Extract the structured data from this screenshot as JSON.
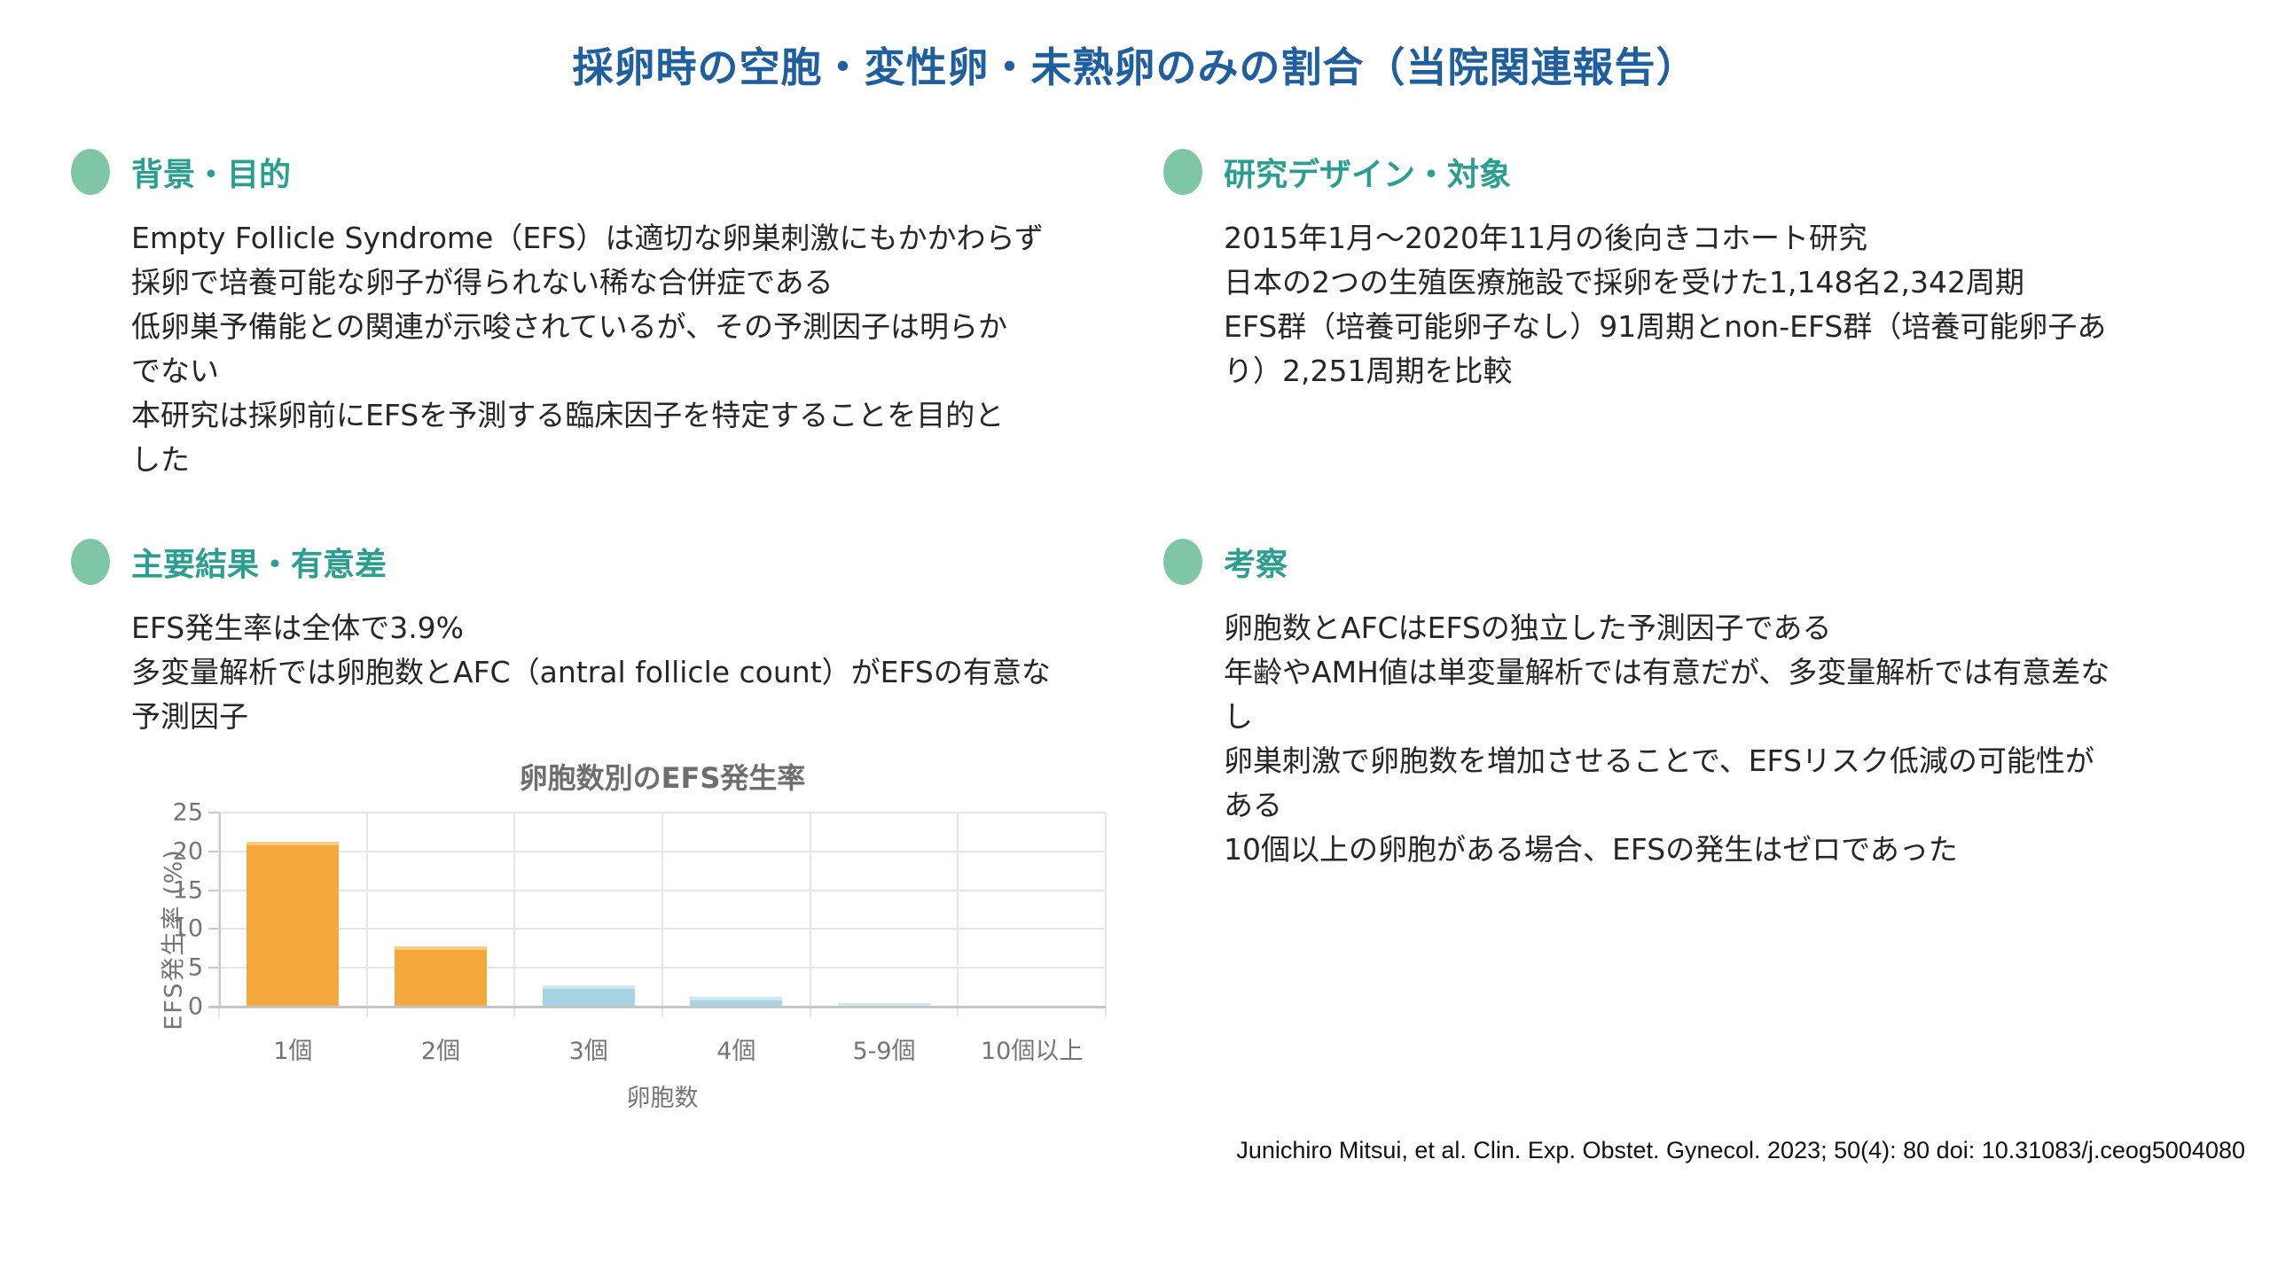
{
  "title": "採卵時の空胞・変性卵・未熟卵のみの割合（当院関連報告）",
  "sections": [
    {
      "heading": "背景・目的",
      "lines": [
        "Empty Follicle Syndrome（EFS）は適切な卵巣刺激にもかかわらず",
        "採卵で培養可能な卵子が得られない稀な合併症である",
        "低卵巣予備能との関連が示唆されているが、その予測因子は明らか",
        "でない",
        "本研究は採卵前にEFSを予測する臨床因子を特定することを目的と",
        "した"
      ]
    },
    {
      "heading": "研究デザイン・対象",
      "lines": [
        "2015年1月〜2020年11月の後向きコホート研究",
        "日本の2つの生殖医療施設で採卵を受けた1,148名2,342周期",
        "EFS群（培養可能卵子なし）91周期とnon-EFS群（培養可能卵子あ",
        "り）2,251周期を比較"
      ]
    },
    {
      "heading": "主要結果・有意差",
      "lines": [
        "EFS発生率は全体で3.9%",
        "多変量解析では卵胞数とAFC（antral follicle count）がEFSの有意な",
        "予測因子"
      ]
    },
    {
      "heading": "考察",
      "lines": [
        "卵胞数とAFCはEFSの独立した予測因子である",
        "年齢やAMH値は単変量解析では有意だが、多変量解析では有意差な",
        "し",
        "卵巣刺激で卵胞数を増加させることで、EFSリスク低減の可能性が",
        "ある",
        "10個以上の卵胞がある場合、EFSの発生はゼロであった"
      ]
    }
  ],
  "citation": "Junichiro Mitsui, et al. Clin. Exp. Obstet. Gynecol. 2023; 50(4): 80 doi: 10.31083/j.ceog5004080",
  "colors": {
    "title_blue": "#1f5f9e",
    "heading_teal": "#2a9e8f",
    "bullet_green": "#7fc6a4",
    "body_text": "#262626",
    "chart_gray": "#757575",
    "bar_orange": "#f5a93c",
    "bar_orange_edge": "#f9cd83",
    "bar_blue": "#a8d3e4",
    "bar_blue_edge": "#cfe7f1"
  },
  "chart_data": {
    "type": "bar",
    "title": "卵胞数別のEFS発生率",
    "categories": [
      "1個",
      "2個",
      "3個",
      "4個",
      "5-9個",
      "10個以上"
    ],
    "values": [
      21.2,
      7.8,
      2.7,
      1.2,
      0.5,
      0
    ],
    "xlabel": "卵胞数",
    "ylabel": "EFS発生率 (%)",
    "ylim": [
      0,
      25
    ],
    "yticks": [
      0,
      5,
      10,
      15,
      20,
      25
    ],
    "grid": true,
    "legend": false,
    "bar_colors": [
      "#f5a93c",
      "#f5a93c",
      "#a8d3e4",
      "#a8d3e4",
      "#a8d3e4",
      "#a8d3e4"
    ],
    "bar_edge_colors": [
      "#f9cd83",
      "#f9cd83",
      "#cfe7f1",
      "#cfe7f1",
      "#cfe7f1",
      "#cfe7f1"
    ]
  }
}
